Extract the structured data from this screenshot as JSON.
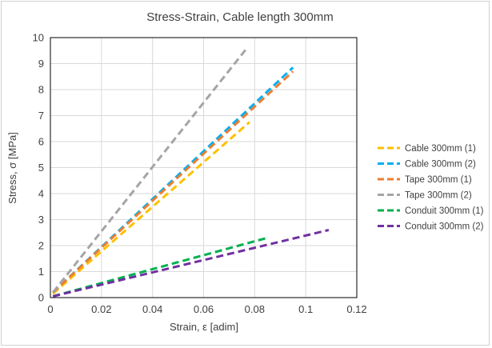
{
  "chart_data": {
    "type": "line",
    "title": "Stress-Strain, Cable length 300mm",
    "xlabel": "Strain, ε [adim]",
    "ylabel": "Stress, σ [MPa]",
    "xlim": [
      0,
      0.12
    ],
    "ylim": [
      0,
      10
    ],
    "xticks": [
      "0",
      "0.02",
      "0.04",
      "0.06",
      "0.08",
      "0.1",
      "0.12"
    ],
    "yticks": [
      "0",
      "1",
      "2",
      "3",
      "4",
      "5",
      "6",
      "7",
      "8",
      "9",
      "10"
    ],
    "grid": true,
    "legend_position": "right",
    "line_style": "dashed",
    "series": [
      {
        "name": "Cable 300mm (1)",
        "color": "#ffc000",
        "x": [
          0.001,
          0.078
        ],
        "y": [
          0.15,
          6.75
        ]
      },
      {
        "name": "Cable 300mm (2)",
        "color": "#00b0f0",
        "x": [
          0.001,
          0.095
        ],
        "y": [
          0.2,
          8.85
        ]
      },
      {
        "name": "Tape 300mm (1)",
        "color": "#ed7d31",
        "x": [
          0.001,
          0.095
        ],
        "y": [
          0.2,
          8.7
        ]
      },
      {
        "name": "Tape 300mm (2)",
        "color": "#a5a5a5",
        "x": [
          0.001,
          0.077
        ],
        "y": [
          0.2,
          9.6
        ]
      },
      {
        "name": "Conduit 300mm (1)",
        "color": "#00b050",
        "x": [
          0.001,
          0.085
        ],
        "y": [
          0.05,
          2.3
        ]
      },
      {
        "name": "Conduit 300mm (2)",
        "color": "#7030a0",
        "x": [
          0.001,
          0.109
        ],
        "y": [
          0.05,
          2.6
        ]
      }
    ]
  }
}
